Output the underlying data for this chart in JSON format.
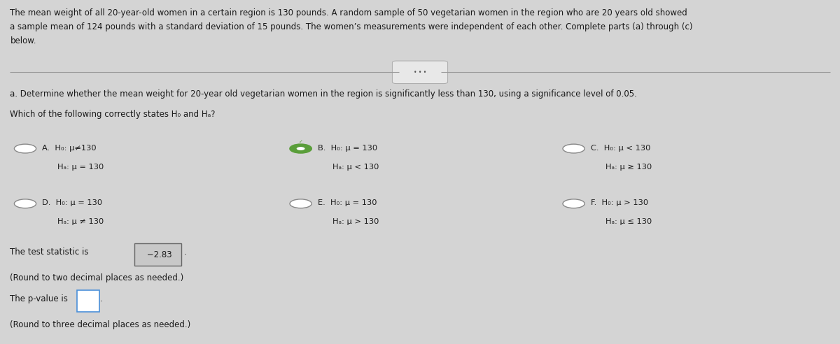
{
  "background_color": "#d4d4d4",
  "header_text_line1": "The mean weight of all 20-year-old women in a certain region is 130 pounds. A random sample of 50 vegetarian women in the region who are 20 years old showed",
  "header_text_line2": "a sample mean of 124 pounds with a standard deviation of 15 pounds. The women’s measurements were independent of each other. Complete parts (a) through (c)",
  "header_text_line3": "below.",
  "divider_button_text": "• • •",
  "part_a_text": "a. Determine whether the mean weight for 20-year old vegetarian women in the region is significantly less than 130, using a significance level of 0.05.",
  "which_text": "Which of the following correctly states H₀ and Hₐ?",
  "options": [
    {
      "label": "A.",
      "line1": "H₀: μ≠130",
      "line2": "Hₐ: μ = 130",
      "selected": false
    },
    {
      "label": "B.",
      "line1": "H₀: μ = 130",
      "line2": "Hₐ: μ < 130",
      "selected": true
    },
    {
      "label": "C.",
      "line1": "H₀: μ < 130",
      "line2": "Hₐ: μ ≥ 130",
      "selected": false
    },
    {
      "label": "D.",
      "line1": "H₀: μ = 130",
      "line2": "Hₐ: μ ≠ 130",
      "selected": false
    },
    {
      "label": "E.",
      "line1": "H₀: μ = 130",
      "line2": "Hₐ: μ > 130",
      "selected": false
    },
    {
      "label": "F.",
      "line1": "H₀: μ > 130",
      "line2": "Hₐ: μ ≤ 130",
      "selected": false
    }
  ],
  "test_stat_label": "The test statistic is",
  "test_stat_value": " −2.83",
  "test_stat_note": "(Round to two decimal places as needed.)",
  "pvalue_label": "The p-value is",
  "pvalue_note": "(Round to three decimal places as needed.)",
  "text_color": "#1a1a1a",
  "selected_color": "#5a9e3a",
  "unselected_color": "#888888",
  "box_gray_edge": "#666666",
  "box_blue_edge": "#4a90d9"
}
